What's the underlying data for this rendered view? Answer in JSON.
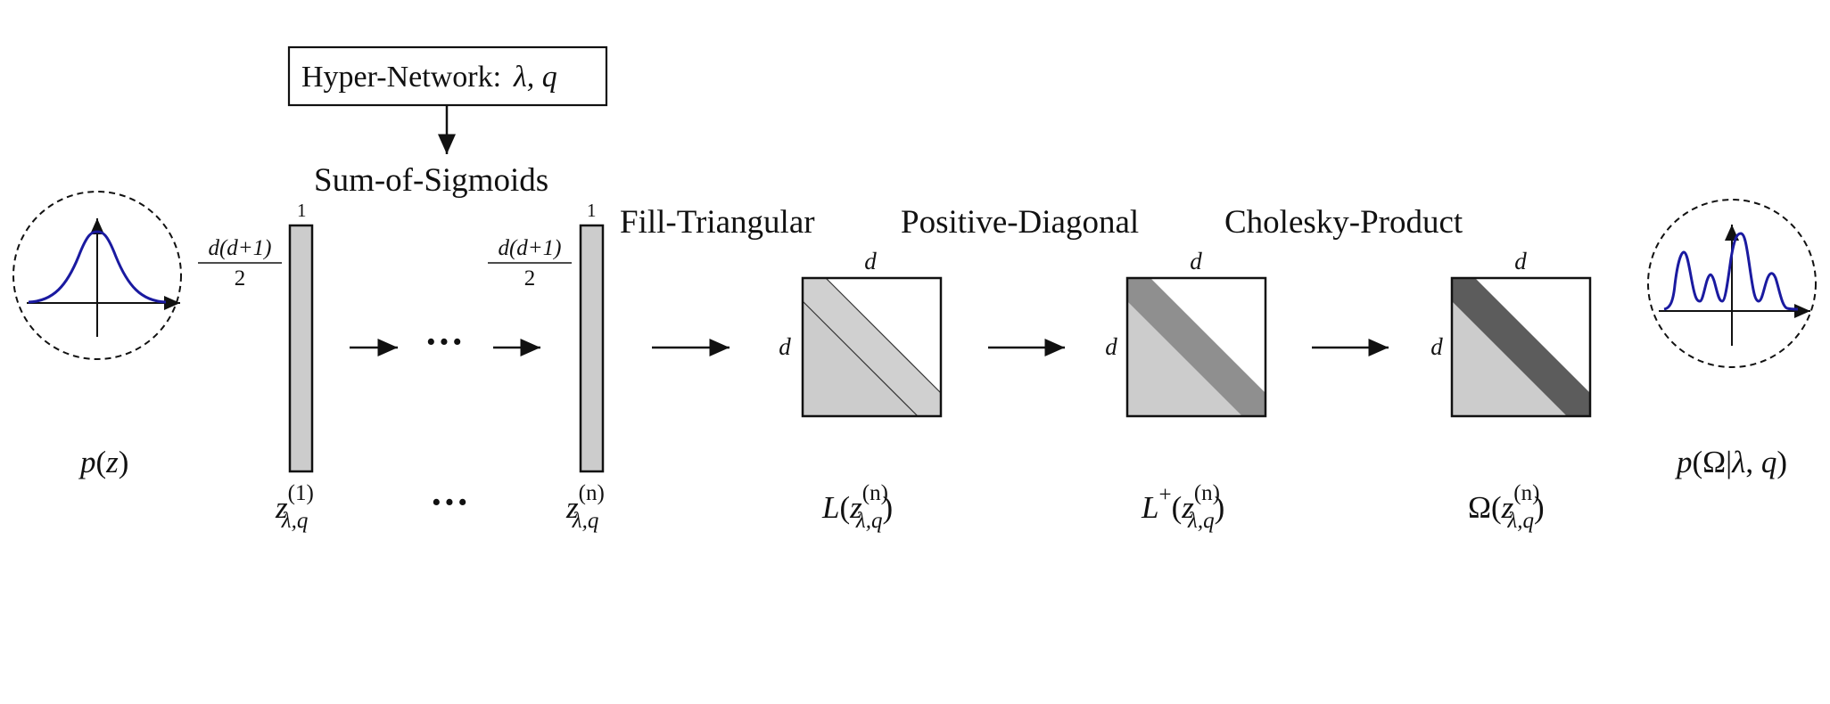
{
  "hypernetwork": {
    "label": "Hyper-Network:",
    "params": "λ, q"
  },
  "stages": {
    "sum_of_sigmoids": "Sum-of-Sigmoids",
    "fill_triangular": "Fill-Triangular",
    "positive_diagonal": "Positive-Diagonal",
    "cholesky_product": "Cholesky-Product"
  },
  "vectors": {
    "width_label": "1",
    "height_label": {
      "numerator": "d(d+1)",
      "denominator": "2"
    }
  },
  "ellipsis": "···",
  "matrix_dim_label": "d",
  "distributions": {
    "base": {
      "p": "p",
      "arg": "z"
    },
    "target": {
      "p": "p",
      "omega": "Ω",
      "bar": "|",
      "lambda": "λ",
      "q": "q"
    }
  },
  "variable_labels": {
    "z_symbol": "z",
    "subscript": "λ,q",
    "sup_1": "(1)",
    "sup_n": "(n)",
    "L": "L",
    "L_plus_sup": "+",
    "Omega": "Ω"
  },
  "colors": {
    "vector_fill": "#cccccc",
    "matrix_lower": "#cccccc",
    "diag_default": "#d0d0d0",
    "diag_positive": "#8f8f8f",
    "diag_cholesky": "#5c5c5c",
    "curve": "#1a1aa0"
  }
}
